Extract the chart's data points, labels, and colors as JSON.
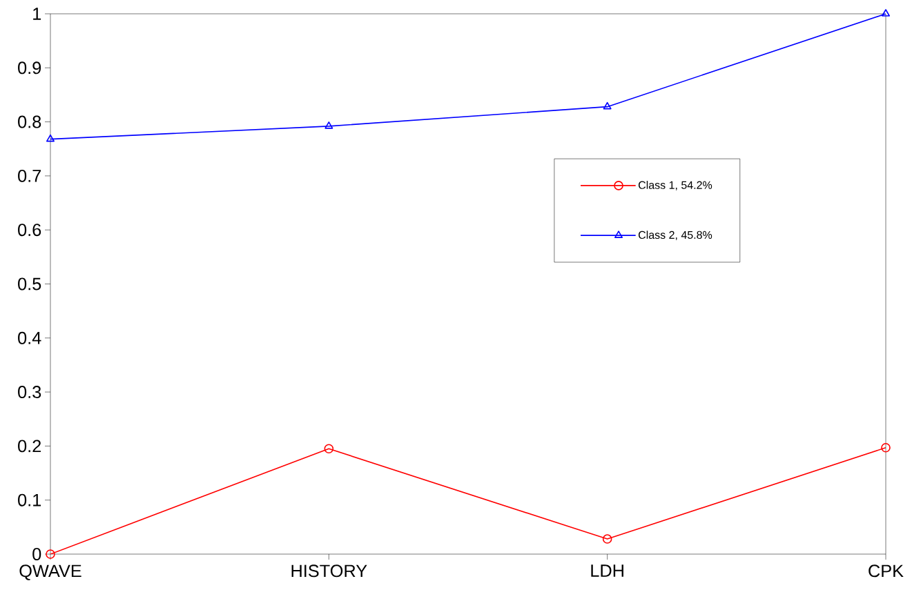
{
  "chart_data": {
    "type": "line",
    "categories": [
      "QWAVE",
      "HISTORY",
      "LDH",
      "CPK"
    ],
    "series": [
      {
        "name": "Class 1, 54.2%",
        "color": "#ff0000",
        "marker": "circle",
        "values": [
          0.0,
          0.195,
          0.028,
          0.197
        ]
      },
      {
        "name": "Class 2, 45.8%",
        "color": "#0000ff",
        "marker": "triangle",
        "values": [
          0.768,
          0.792,
          0.828,
          1.0
        ]
      }
    ],
    "ylim": [
      0,
      1
    ],
    "yticks": [
      0,
      0.1,
      0.2,
      0.3,
      0.4,
      0.5,
      0.6,
      0.7,
      0.8,
      0.9,
      1
    ],
    "grid": false,
    "legend": "right",
    "line_style": "solid"
  }
}
